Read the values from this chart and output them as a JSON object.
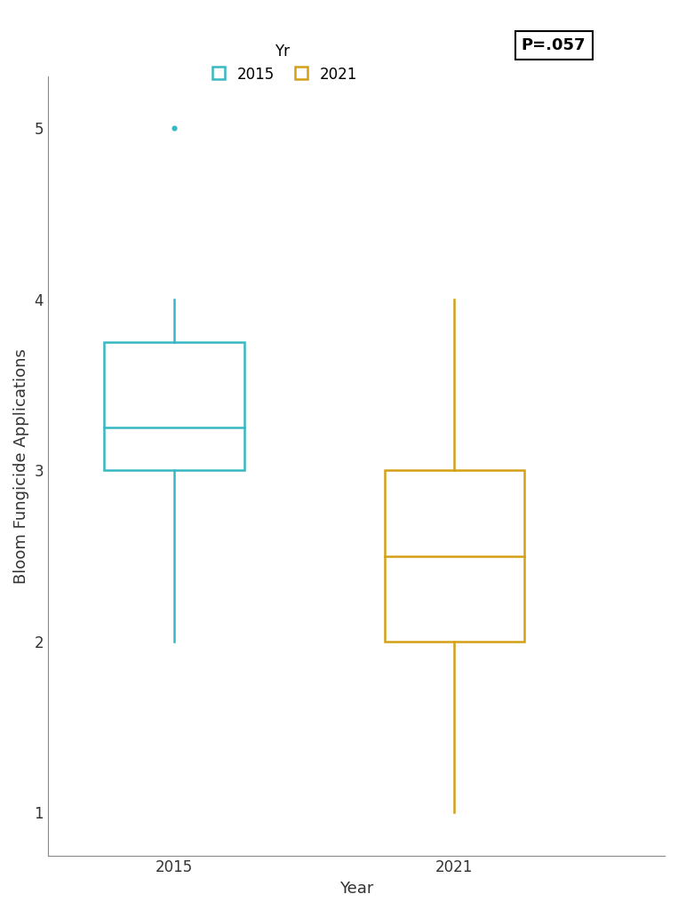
{
  "box2015": {
    "q1": 3.0,
    "median": 3.25,
    "q3": 3.75,
    "whisker_low": 2.0,
    "whisker_high": 4.0,
    "outliers": [
      5.0
    ],
    "color": "#38B8C2",
    "x": 1
  },
  "box2021": {
    "q1": 2.0,
    "median": 2.5,
    "q3": 3.0,
    "whisker_low": 1.0,
    "whisker_high": 4.0,
    "outliers": [],
    "color": "#D4A017",
    "x": 2
  },
  "box_width": 0.5,
  "ylabel": "Bloom Fungicide Applications",
  "xlabel": "Year",
  "ylim": [
    0.75,
    5.3
  ],
  "yticks": [
    1,
    2,
    3,
    4,
    5
  ],
  "xtick_labels": [
    "2015",
    "2021"
  ],
  "legend_title": "Yr",
  "p_value_text": "P=.057",
  "background_color": "#ffffff",
  "axis_color": "#333333",
  "label_fontsize": 13,
  "tick_fontsize": 12,
  "legend_fontsize": 12,
  "p_fontsize": 13
}
